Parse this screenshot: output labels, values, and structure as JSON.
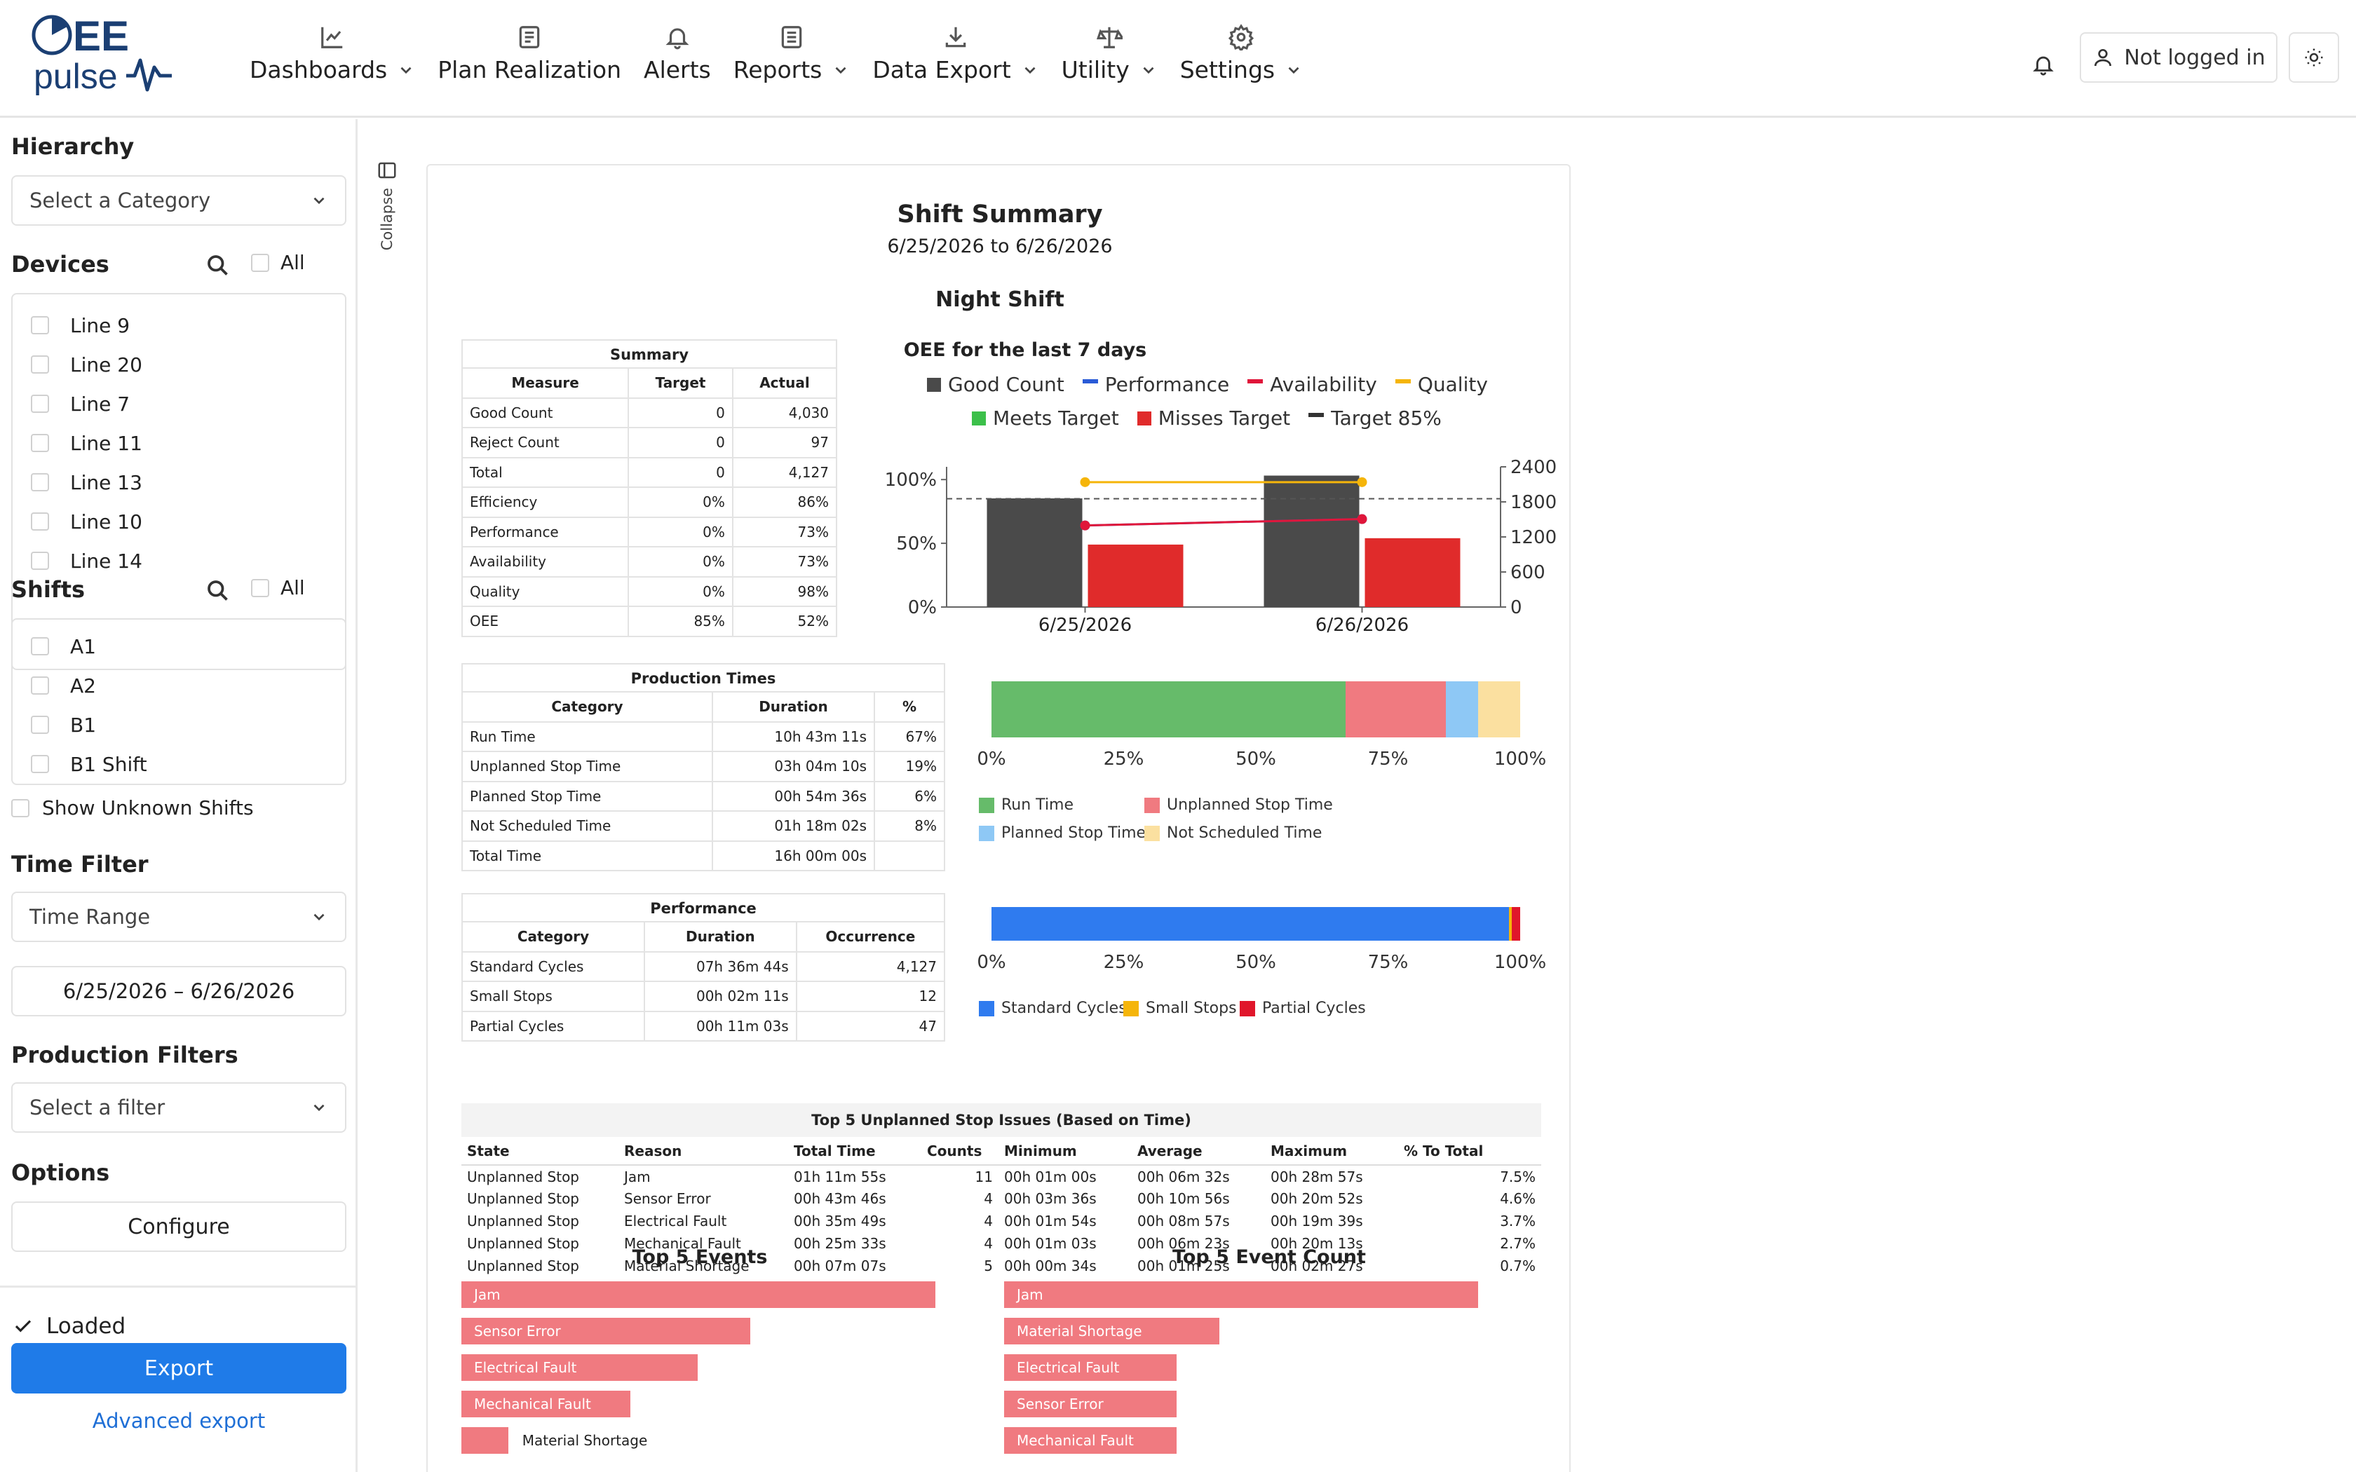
{
  "brand": {
    "line1": "EE",
    "line2": "pulse"
  },
  "nav": [
    {
      "label": "Dashboards",
      "icon": "chart-line-icon",
      "dropdown": true
    },
    {
      "label": "Plan Realization",
      "icon": "document-icon",
      "dropdown": false
    },
    {
      "label": "Alerts",
      "icon": "bell-icon",
      "dropdown": false
    },
    {
      "label": "Reports",
      "icon": "report-icon",
      "dropdown": true
    },
    {
      "label": "Data Export",
      "icon": "download-icon",
      "dropdown": true
    },
    {
      "label": "Utility",
      "icon": "scale-icon",
      "dropdown": true
    },
    {
      "label": "Settings",
      "icon": "gear-icon",
      "dropdown": true
    }
  ],
  "header": {
    "login_label": "Not logged in"
  },
  "sidebar": {
    "hierarchy": {
      "title": "Hierarchy",
      "placeholder": "Select a Category"
    },
    "devices": {
      "title": "Devices",
      "all_label": "All",
      "items": [
        "Line 9",
        "Line 20",
        "Line 7",
        "Line 11",
        "Line 13",
        "Line 10",
        "Line 14"
      ]
    },
    "shifts": {
      "title": "Shifts",
      "all_label": "All",
      "items": [
        "A1",
        "A2",
        "B1",
        "B1 Shift"
      ]
    },
    "show_unknown": "Show Unknown Shifts",
    "time_filter": {
      "title": "Time Filter",
      "mode": "Time Range",
      "range": "6/25/2026 – 6/26/2026"
    },
    "production_filters": {
      "title": "Production Filters",
      "placeholder": "Select a filter"
    },
    "options": {
      "title": "Options",
      "configure_label": "Configure"
    },
    "status": "Loaded",
    "export_label": "Export",
    "advanced_export_label": "Advanced export"
  },
  "collapse_label": "Collapse",
  "report": {
    "title": "Shift Summary",
    "date_range": "6/25/2026 to 6/26/2026",
    "shift_name": "Night Shift",
    "summary": {
      "caption": "Summary",
      "headers": [
        "Measure",
        "Target",
        "Actual"
      ],
      "rows": [
        [
          "Good Count",
          "0",
          "4,030"
        ],
        [
          "Reject Count",
          "0",
          "97"
        ],
        [
          "Total",
          "0",
          "4,127"
        ],
        [
          "Efficiency",
          "0%",
          "86%"
        ],
        [
          "Performance",
          "0%",
          "73%"
        ],
        [
          "Availability",
          "0%",
          "73%"
        ],
        [
          "Quality",
          "0%",
          "98%"
        ],
        [
          "OEE",
          "85%",
          "52%"
        ]
      ]
    },
    "production_times": {
      "caption": "Production Times",
      "headers": [
        "Category",
        "Duration",
        "%"
      ],
      "rows": [
        [
          "Run Time",
          "10h 43m 11s",
          "67%"
        ],
        [
          "Unplanned Stop Time",
          "03h 04m 10s",
          "19%"
        ],
        [
          "Planned Stop Time",
          "00h 54m 36s",
          "6%"
        ],
        [
          "Not Scheduled Time",
          "01h 18m 02s",
          "8%"
        ],
        [
          "Total Time",
          "16h 00m 00s",
          ""
        ]
      ]
    },
    "performance": {
      "caption": "Performance",
      "headers": [
        "Category",
        "Duration",
        "Occurrence"
      ],
      "rows": [
        [
          "Standard Cycles",
          "07h 36m 44s",
          "4,127"
        ],
        [
          "Small Stops",
          "00h 02m 11s",
          "12"
        ],
        [
          "Partial Cycles",
          "00h 11m 03s",
          "47"
        ]
      ]
    },
    "issues": {
      "caption": "Top 5 Unplanned Stop Issues (Based on Time)",
      "headers": [
        "State",
        "Reason",
        "Total Time",
        "Counts",
        "Minimum",
        "Average",
        "Maximum",
        "% To Total"
      ],
      "rows": [
        [
          "Unplanned Stop",
          "Jam",
          "01h 11m 55s",
          "11",
          "00h 01m 00s",
          "00h 06m 32s",
          "00h 28m 57s",
          "7.5%"
        ],
        [
          "Unplanned Stop",
          "Sensor Error",
          "00h 43m 46s",
          "4",
          "00h 03m 36s",
          "00h 10m 56s",
          "00h 20m 52s",
          "4.6%"
        ],
        [
          "Unplanned Stop",
          "Electrical Fault",
          "00h 35m 49s",
          "4",
          "00h 01m 54s",
          "00h 08m 57s",
          "00h 19m 39s",
          "3.7%"
        ],
        [
          "Unplanned Stop",
          "Mechanical Fault",
          "00h 25m 33s",
          "4",
          "00h 01m 03s",
          "00h 06m 23s",
          "00h 20m 13s",
          "2.7%"
        ],
        [
          "Unplanned Stop",
          "Material Shortage",
          "00h 07m 07s",
          "5",
          "00h 00m 34s",
          "00h 01m 25s",
          "00h 02m 27s",
          "0.7%"
        ]
      ]
    }
  },
  "colors": {
    "good_count": "#4a4a4a",
    "performance": "#2a5bd7",
    "availability": "#e0163a",
    "quality": "#f5b50a",
    "meets": "#3cc04a",
    "misses": "#e02b2b",
    "run": "#66bb6a",
    "unplanned": "#f07a80",
    "planned": "#8ec8f5",
    "not_scheduled": "#fbe0a0",
    "standard": "#2f7bef",
    "small": "#f5b50a",
    "partial": "#e0162b",
    "accent": "#1f7be8",
    "event_bar": "#f07a80"
  },
  "chart_data": [
    {
      "type": "bar",
      "title": "OEE for the last 7 days",
      "categories": [
        "6/25/2026",
        "6/26/2026"
      ],
      "series": [
        {
          "name": "Good Count",
          "kind": "bar",
          "axis": "right",
          "values": [
            1860,
            2250
          ]
        },
        {
          "name": "Performance",
          "kind": "line",
          "axis": "left",
          "values": [
            0.64,
            0.69
          ]
        },
        {
          "name": "Availability",
          "kind": "line",
          "axis": "left",
          "values": [
            0.64,
            0.69
          ]
        },
        {
          "name": "Quality",
          "kind": "line",
          "axis": "left",
          "values": [
            0.98,
            0.98
          ]
        },
        {
          "name": "Meets Target",
          "kind": "bar",
          "axis": "left",
          "values": [
            0,
            0
          ]
        },
        {
          "name": "Misses Target",
          "kind": "bar",
          "axis": "left",
          "values": [
            0.49,
            0.54
          ]
        }
      ],
      "target": {
        "name": "Target 85%",
        "value": 0.85
      },
      "y_left": {
        "ticks": [
          "0%",
          "50%",
          "100%"
        ],
        "range": [
          0,
          1.1
        ]
      },
      "y_right": {
        "ticks": [
          "0",
          "600",
          "1200",
          "1800",
          "2400"
        ],
        "range": [
          0,
          2400
        ]
      },
      "legend": "top"
    },
    {
      "type": "bar",
      "title": "",
      "stacked": true,
      "orientation": "horizontal",
      "series": [
        {
          "name": "Run Time",
          "value": 67
        },
        {
          "name": "Unplanned Stop Time",
          "value": 19
        },
        {
          "name": "Planned Stop Time",
          "value": 6
        },
        {
          "name": "Not Scheduled Time",
          "value": 8
        }
      ],
      "x_ticks": [
        "0%",
        "25%",
        "50%",
        "75%",
        "100%"
      ]
    },
    {
      "type": "bar",
      "title": "",
      "stacked": true,
      "orientation": "horizontal",
      "series": [
        {
          "name": "Standard Cycles",
          "value": 97.9
        },
        {
          "name": "Small Stops",
          "value": 0.5
        },
        {
          "name": "Partial Cycles",
          "value": 1.6
        }
      ],
      "x_ticks": [
        "0%",
        "25%",
        "50%",
        "75%",
        "100%"
      ]
    },
    {
      "type": "bar",
      "title": "Top 5 Events",
      "orientation": "horizontal",
      "categories": [
        "Jam",
        "Sensor Error",
        "Electrical Fault",
        "Mechanical Fault",
        "Material Shortage"
      ],
      "values": [
        71.9,
        43.8,
        35.8,
        25.6,
        7.1
      ]
    },
    {
      "type": "bar",
      "title": "Top 5 Event Count",
      "orientation": "horizontal",
      "categories": [
        "Jam",
        "Material Shortage",
        "Electrical Fault",
        "Sensor Error",
        "Mechanical Fault"
      ],
      "values": [
        11,
        5,
        4,
        4,
        4
      ]
    }
  ]
}
